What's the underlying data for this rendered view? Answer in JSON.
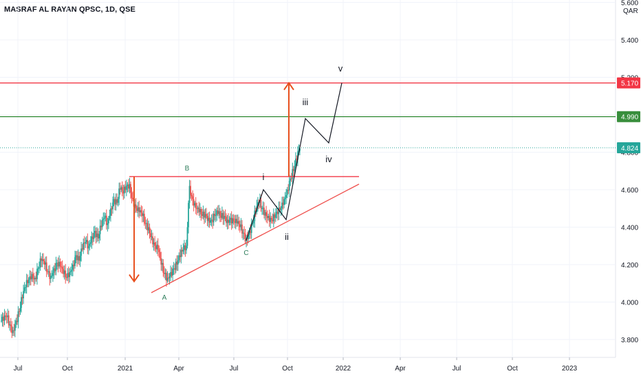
{
  "header": {
    "title": "MASRAF AL RAYAN QPSC, 1D, QSE",
    "currency": "QAR"
  },
  "colors": {
    "up": "#26a69a",
    "down": "#ef5350",
    "red_line": "#f23645",
    "green_line": "#388e3c",
    "teal_tag": "#26a69a",
    "orange": "#e8501f",
    "support": "#ef5350",
    "wave": "#131722",
    "abc_text": "#2e7d5b"
  },
  "chart_data": {
    "type": "candlestick",
    "title": "MASRAF AL RAYAN QPSC, 1D, QSE",
    "x_ticks": [
      "Jul",
      "Oct",
      "2021",
      "Apr",
      "Jul",
      "Oct",
      "2022",
      "Apr",
      "Jul",
      "Oct",
      "2023"
    ],
    "y_ticks": [
      "3.800",
      "4.000",
      "4.200",
      "4.400",
      "4.600",
      "4.800",
      "5.000",
      "5.200",
      "5.400",
      "5.600"
    ],
    "ylim": [
      3.7,
      5.6
    ],
    "price_levels": [
      {
        "value": 5.17,
        "label": "5.170",
        "color": "red"
      },
      {
        "value": 4.99,
        "label": "4.990",
        "color": "green"
      },
      {
        "value": 4.824,
        "label": "4.824",
        "color": "teal",
        "style": "dotted"
      }
    ],
    "horizontal_resistance": 4.67,
    "wave_labels": [
      "i",
      "ii",
      "iii",
      "iv",
      "v"
    ],
    "abc_labels": [
      "A",
      "B",
      "C"
    ],
    "close_series": [
      3.9,
      3.92,
      3.88,
      3.85,
      3.9,
      3.95,
      4.02,
      4.08,
      4.12,
      4.15,
      4.13,
      4.18,
      4.22,
      4.2,
      4.16,
      4.14,
      4.18,
      4.21,
      4.19,
      4.15,
      4.13,
      4.16,
      4.2,
      4.25,
      4.22,
      4.28,
      4.32,
      4.3,
      4.35,
      4.38,
      4.34,
      4.4,
      4.45,
      4.42,
      4.5,
      4.55,
      4.53,
      4.6,
      4.58,
      4.62,
      4.63,
      4.55,
      4.5,
      4.48,
      4.46,
      4.42,
      4.4,
      4.35,
      4.3,
      4.28,
      4.2,
      4.15,
      4.13,
      4.16,
      4.18,
      4.2,
      4.24,
      4.28,
      4.3,
      4.62,
      4.55,
      4.5,
      4.48,
      4.46,
      4.47,
      4.45,
      4.44,
      4.46,
      4.47,
      4.45,
      4.46,
      4.44,
      4.45,
      4.43,
      4.42,
      4.4,
      4.37,
      4.34,
      4.38,
      4.42,
      4.48,
      4.53,
      4.5,
      4.48,
      4.46,
      4.44,
      4.45,
      4.47,
      4.5,
      4.55,
      4.6,
      4.66,
      4.7,
      4.76,
      4.82
    ]
  }
}
